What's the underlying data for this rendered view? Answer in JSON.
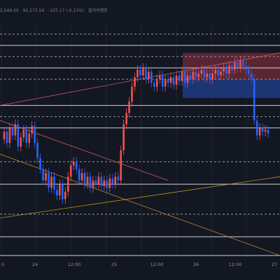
{
  "header": {
    "title_fragment": "블리쉬햄용",
    "price_text": "5,549.00",
    "price2_text": "95,573.54",
    "change_text": "-107.17 (-0.11%)"
  },
  "colors": {
    "background": "#131722",
    "bull": "#ef5350",
    "bear": "#2962ff",
    "level_solid": "#d1d4dc",
    "level_dashed": "#9598a1",
    "zone_upper": "#b2374a",
    "zone_lower": "#2a5bd7",
    "trend_red": "#e06060",
    "trend_orange": "#c98a3b",
    "trend_yellow": "#c8a415"
  },
  "chart_data": {
    "type": "candlestick",
    "title": "",
    "x_tick_labels": [
      "0",
      "24",
      "12:00",
      "25",
      "12:00",
      "26",
      "12:00",
      "27"
    ],
    "y_range": [
      0,
      100
    ],
    "price_series": [
      62,
      66,
      60,
      68,
      64,
      70,
      58,
      63,
      67,
      60,
      65,
      69,
      60,
      52,
      46,
      40,
      44,
      36,
      42,
      35,
      32,
      38,
      30,
      34,
      42,
      48,
      50,
      46,
      40,
      44,
      38,
      42,
      36,
      40,
      38,
      42,
      37,
      40,
      36,
      41,
      38,
      42,
      40,
      56,
      70,
      76,
      82,
      90,
      95,
      99,
      96,
      100,
      94,
      98,
      92,
      90,
      94,
      96,
      90,
      94,
      92,
      95,
      91,
      96,
      93,
      98,
      92,
      96,
      94,
      98,
      95,
      97,
      99,
      95,
      97,
      94,
      97,
      99,
      96,
      98,
      100,
      97,
      101,
      99,
      103,
      100,
      104,
      101,
      99,
      97,
      94,
      72,
      64,
      68,
      66,
      67,
      65
    ],
    "horizontal_levels": [
      {
        "value": 118,
        "style": "dashed"
      },
      {
        "value": 112,
        "style": "solid"
      },
      {
        "value": 106,
        "style": "dashed"
      },
      {
        "value": 100,
        "style": "solid"
      },
      {
        "value": 94,
        "style": "dashed"
      },
      {
        "value": 80,
        "style": "solid"
      },
      {
        "value": 74,
        "style": "dashed"
      },
      {
        "value": 68,
        "style": "solid"
      },
      {
        "value": 50,
        "style": "dashed"
      },
      {
        "value": 38,
        "style": "solid"
      },
      {
        "value": 22,
        "style": "dashed"
      },
      {
        "value": 10,
        "style": "solid"
      },
      {
        "value": 0,
        "style": "solid"
      }
    ],
    "zones": [
      {
        "name": "supply",
        "x_from": 64,
        "x_to": 100,
        "y_from": 108,
        "y_to": 94
      },
      {
        "name": "demand",
        "x_from": 64,
        "x_to": 100,
        "y_from": 94,
        "y_to": 84
      }
    ],
    "trendlines": [
      {
        "color": "trend_red",
        "from": [
          0,
          80
        ],
        "to": [
          100,
          108
        ]
      },
      {
        "color": "trend_red",
        "from": [
          0,
          72
        ],
        "to": [
          60,
          40
        ]
      },
      {
        "color": "trend_orange",
        "from": [
          0,
          54
        ],
        "to": [
          100,
          0
        ]
      },
      {
        "color": "trend_yellow",
        "from": [
          0,
          20
        ],
        "to": [
          100,
          42
        ]
      }
    ],
    "grid": true
  }
}
